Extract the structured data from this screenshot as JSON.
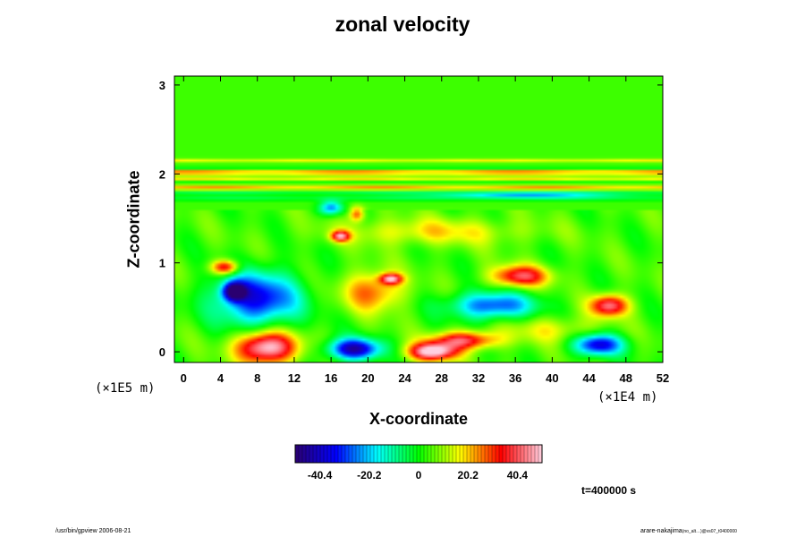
{
  "chart_data": {
    "type": "heatmap",
    "title": "zonal velocity",
    "xlabel": "X-coordinate",
    "ylabel": "Z-coordinate",
    "x_scale_label": "(×1E4 m)",
    "y_scale_label": "(×1E5 m)",
    "xlim": [
      -1,
      52
    ],
    "ylim": [
      -0.12,
      3.1
    ],
    "x_ticks": [
      "0",
      "4",
      "8",
      "12",
      "16",
      "20",
      "24",
      "28",
      "32",
      "36",
      "40",
      "44",
      "48",
      "52"
    ],
    "y_ticks": [
      "0",
      "1",
      "2",
      "3"
    ],
    "colorbar": {
      "ticks": [
        "-40.4",
        "-20.2",
        "0",
        "20.2",
        "40.4"
      ],
      "tick_values": [
        -40.4,
        -20.2,
        0,
        20.2,
        40.4
      ],
      "range": [
        -50.5,
        50.5
      ],
      "colors": [
        "#2a0070",
        "#0000ff",
        "#00ffff",
        "#00ff00",
        "#ffff00",
        "#ff0000",
        "#ffd0e0"
      ]
    },
    "background_value": 4,
    "bands": [
      {
        "z": 2.02,
        "half_width": 0.03,
        "value": 24
      },
      {
        "z": 2.07,
        "half_width": 0.015,
        "value": -12
      },
      {
        "z": 1.95,
        "half_width": 0.02,
        "value": 18
      },
      {
        "z": 1.9,
        "half_width": 0.02,
        "value": -6
      },
      {
        "z": 1.85,
        "half_width": 0.03,
        "value": 20
      },
      {
        "z": 1.78,
        "half_width": 0.02,
        "value": -14
      },
      {
        "z": 1.72,
        "half_width": 0.02,
        "value": -12
      },
      {
        "z": 2.15,
        "half_width": 0.02,
        "value": 14
      }
    ],
    "blobs": [
      {
        "x": 9,
        "z": 0.05,
        "value": 50,
        "size_x": 3.2,
        "size_z": 0.18
      },
      {
        "x": 18.5,
        "z": 0.03,
        "value": -48,
        "size_x": 2.8,
        "size_z": 0.12
      },
      {
        "x": 27,
        "z": 0.0,
        "value": 50,
        "size_x": 2.6,
        "size_z": 0.1
      },
      {
        "x": 30.5,
        "z": 0.13,
        "value": 36,
        "size_x": 3.5,
        "size_z": 0.1
      },
      {
        "x": 45,
        "z": 0.08,
        "value": -42,
        "size_x": 2.6,
        "size_z": 0.12
      },
      {
        "x": 8,
        "z": 0.6,
        "value": -40,
        "size_x": 4.5,
        "size_z": 0.3
      },
      {
        "x": 5.5,
        "z": 0.68,
        "value": -50,
        "size_x": 1.2,
        "size_z": 0.1
      },
      {
        "x": 4.5,
        "z": 0.95,
        "value": 36,
        "size_x": 1.5,
        "size_z": 0.08
      },
      {
        "x": 20.5,
        "z": 0.68,
        "value": 24,
        "size_x": 3.2,
        "size_z": 0.22
      },
      {
        "x": 22.5,
        "z": 0.82,
        "value": 38,
        "size_x": 1.2,
        "size_z": 0.06
      },
      {
        "x": 33.5,
        "z": 0.52,
        "value": -34,
        "size_x": 4.5,
        "size_z": 0.15
      },
      {
        "x": 36.5,
        "z": 0.85,
        "value": 36,
        "size_x": 3.0,
        "size_z": 0.12
      },
      {
        "x": 46.2,
        "z": 0.52,
        "value": 40,
        "size_x": 2.0,
        "size_z": 0.12
      },
      {
        "x": 16,
        "z": 1.62,
        "value": -28,
        "size_x": 1.3,
        "size_z": 0.08
      },
      {
        "x": 17,
        "z": 1.3,
        "value": 38,
        "size_x": 1.0,
        "size_z": 0.06
      },
      {
        "x": 18.8,
        "z": 1.55,
        "value": 26,
        "size_x": 0.8,
        "size_z": 0.08
      },
      {
        "x": 37,
        "z": 1.76,
        "value": -22,
        "size_x": 9.0,
        "size_z": 0.03
      },
      {
        "x": 27,
        "z": 1.35,
        "value": 14,
        "size_x": 10,
        "size_z": 0.15
      },
      {
        "x": 40,
        "z": 0.25,
        "value": 12,
        "size_x": 5,
        "size_z": 0.15
      }
    ]
  },
  "time_label": "t=400000 s",
  "footer": {
    "left": "/usr/bin/gpview 2006-08-21",
    "right": "arare-nakajima",
    "right_sub": "(no_alt…)@vs07_t0400000"
  }
}
